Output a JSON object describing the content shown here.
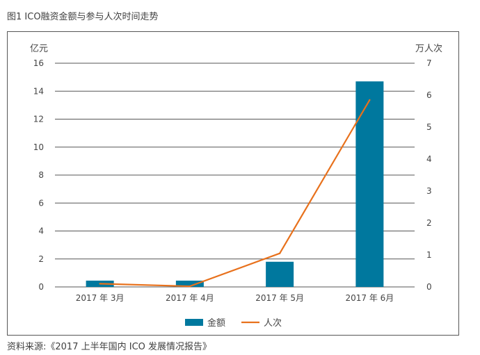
{
  "figure_caption": "图1  ICO融资金额与参与人次时间走势",
  "source_note": "资料来源:《2017 上半年国内 ICO 发展情况报告》",
  "colors": {
    "bar": "#00789e",
    "line": "#e8711c",
    "grid": "#555555",
    "text": "#444444"
  },
  "chart_data": {
    "type": "bar",
    "categories": [
      "2017 年 3月",
      "2017 年 4月",
      "2017 年 5月",
      "2017 年 6月"
    ],
    "series": [
      {
        "name": "金额",
        "type": "bar",
        "axis": "left",
        "values": [
          0.45,
          0.45,
          1.8,
          14.7
        ]
      },
      {
        "name": "人次",
        "type": "line",
        "axis": "right",
        "values": [
          0.1,
          0.02,
          1.05,
          5.85
        ]
      }
    ],
    "y_left": {
      "label": "亿元",
      "min": 0,
      "max": 16,
      "ticks": [
        0,
        2,
        4,
        6,
        8,
        10,
        12,
        14,
        16
      ]
    },
    "y_right": {
      "label": "万人次",
      "min": 0,
      "max": 7,
      "ticks": [
        0,
        1,
        2,
        3,
        4,
        5,
        6,
        7
      ]
    },
    "grid": true,
    "legend_position": "bottom"
  }
}
